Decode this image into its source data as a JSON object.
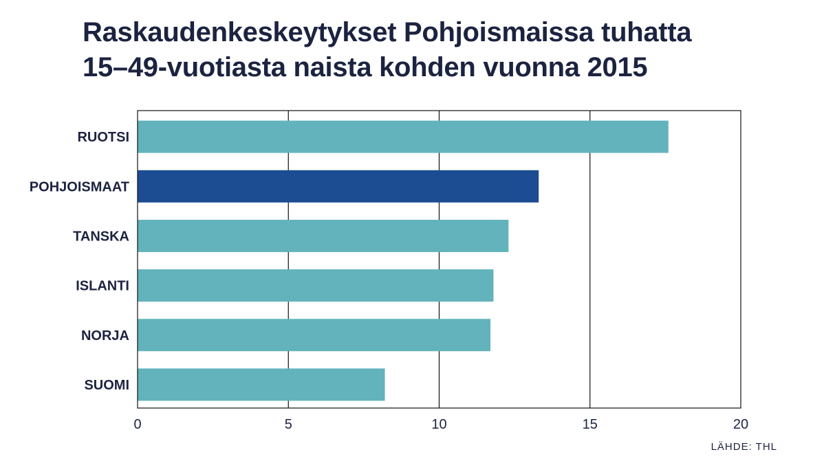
{
  "chart_data": {
    "type": "bar",
    "orientation": "horizontal",
    "title": "Raskaudenkeskeytykset Pohjoismaissa tuhatta 15–49-vuotiasta naista kohden vuonna 2015",
    "title_lines": [
      "Raskaudenkeskeytykset Pohjoismaissa tuhatta",
      "15–49-vuotiasta naista kohden vuonna 2015"
    ],
    "categories": [
      "RUOTSI",
      "POHJOISMAAT",
      "TANSKA",
      "ISLANTI",
      "NORJA",
      "SUOMI"
    ],
    "values": [
      17.6,
      13.3,
      12.3,
      11.8,
      11.7,
      8.2
    ],
    "highlight": "POHJOISMAAT",
    "xlim": [
      0,
      20
    ],
    "xticks": [
      0,
      5,
      10,
      15,
      20
    ],
    "grid": true,
    "colors": {
      "bar": "#62b3bb",
      "highlight": "#1c4c92",
      "text": "#1c2340",
      "grid": "#111111"
    },
    "source": "LÄHDE: THL"
  }
}
